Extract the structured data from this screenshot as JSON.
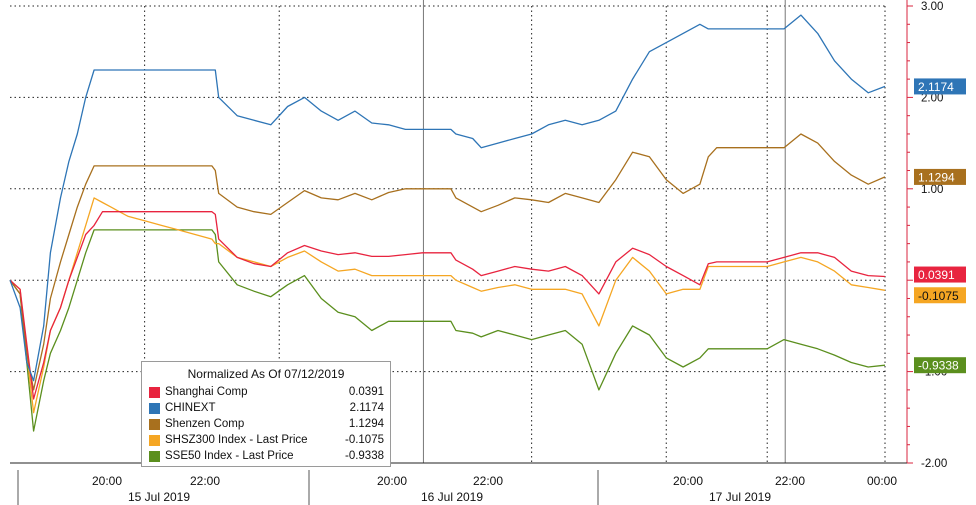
{
  "chart_data": {
    "type": "line",
    "title": "",
    "xlabel": "",
    "ylabel": "",
    "ylim": [
      -2.0,
      3.0
    ],
    "y_ticks": [
      {
        "value": 3.0,
        "label": "3.00"
      },
      {
        "value": 2.0,
        "label": "2.00"
      },
      {
        "value": 1.0,
        "label": "1.00"
      },
      {
        "value": 0.0,
        "label": ""
      },
      {
        "value": -1.0,
        "label": "-1.00"
      },
      {
        "value": -2.0,
        "label": "-2.00"
      }
    ],
    "x_time_labels": [
      "20:00",
      "22:00",
      "20:00",
      "22:00",
      "20:00",
      "22:00",
      "00:00"
    ],
    "x_day_labels": [
      "15 Jul 2019",
      "16 Jul 2019",
      "17 Jul 2019"
    ],
    "grid": true,
    "legend_position": "bottom-left",
    "legend_title": "Normalized As Of 07/12/2019",
    "series": [
      {
        "name": "Shanghai Comp",
        "color": "#e8243f",
        "last": "0.0391",
        "x": [
          0,
          0.6,
          1.0,
          1.4,
          2.0,
          2.4,
          3.0,
          3.5,
          4.0,
          4.5,
          5.0,
          5.5,
          6.0,
          6.5,
          7.0,
          8.0,
          9.0,
          10.0,
          11.0,
          12.0,
          12.2,
          12.4,
          13.5,
          14.5,
          15.5,
          16.5,
          17.5,
          18.5,
          19.5,
          20.5,
          21.5,
          22.5,
          23.5,
          24.5,
          25.5,
          26.0,
          26.2,
          26.5,
          27.5,
          28.0,
          29.0,
          30.0,
          31.0,
          32.0,
          33.0,
          34.0,
          35.0,
          36.0,
          37.0,
          38.0,
          39.0,
          40.0,
          41.0,
          41.5,
          42.0,
          42.5,
          43.0,
          43.5,
          44.0,
          45.0,
          46.0,
          47.0,
          48.0,
          49.0,
          50.0,
          51.0,
          52.0
        ],
        "y": [
          0,
          -0.1,
          -0.7,
          -1.3,
          -0.9,
          -0.55,
          -0.3,
          0,
          0.25,
          0.5,
          0.6,
          0.75,
          0.75,
          0.75,
          0.75,
          0.75,
          0.75,
          0.75,
          0.75,
          0.75,
          0.72,
          0.45,
          0.25,
          0.18,
          0.15,
          0.3,
          0.38,
          0.32,
          0.28,
          0.3,
          0.26,
          0.26,
          0.28,
          0.3,
          0.3,
          0.3,
          0.3,
          0.22,
          0.12,
          0.05,
          0.1,
          0.15,
          0.12,
          0.1,
          0.15,
          0.05,
          -0.15,
          0.2,
          0.35,
          0.28,
          0.15,
          0.05,
          -0.05,
          0.18,
          0.2,
          0.2,
          0.2,
          0.2,
          0.2,
          0.2,
          0.25,
          0.3,
          0.3,
          0.25,
          0.1,
          0.05,
          0.04
        ]
      },
      {
        "name": "CHINEXT",
        "color": "#2e75b6",
        "last": "2.1174",
        "x": [
          0,
          0.6,
          1.0,
          1.4,
          2.0,
          2.4,
          3.0,
          3.5,
          4.0,
          4.5,
          5.0,
          5.5,
          6.0,
          6.5,
          7.0,
          8.0,
          9.0,
          10.0,
          11.0,
          12.0,
          12.2,
          12.4,
          13.5,
          14.5,
          15.5,
          16.5,
          17.5,
          18.5,
          19.5,
          20.5,
          21.5,
          22.5,
          23.5,
          24.5,
          25.5,
          26.0,
          26.2,
          26.5,
          27.5,
          28.0,
          29.0,
          30.0,
          31.0,
          32.0,
          33.0,
          34.0,
          35.0,
          36.0,
          37.0,
          38.0,
          39.0,
          40.0,
          41.0,
          41.5,
          42.0,
          42.5,
          43.0,
          43.5,
          44.0,
          45.0,
          46.0,
          47.0,
          48.0,
          49.0,
          50.0,
          51.0,
          52.0
        ],
        "y": [
          0,
          -0.3,
          -0.9,
          -1.1,
          -0.5,
          0.3,
          0.9,
          1.3,
          1.6,
          2.0,
          2.3,
          2.3,
          2.3,
          2.3,
          2.3,
          2.3,
          2.3,
          2.3,
          2.3,
          2.3,
          2.3,
          2.0,
          1.8,
          1.75,
          1.7,
          1.9,
          2.0,
          1.85,
          1.75,
          1.85,
          1.72,
          1.7,
          1.65,
          1.65,
          1.65,
          1.65,
          1.65,
          1.6,
          1.55,
          1.45,
          1.5,
          1.55,
          1.6,
          1.7,
          1.75,
          1.7,
          1.75,
          1.85,
          2.2,
          2.5,
          2.6,
          2.7,
          2.8,
          2.75,
          2.75,
          2.75,
          2.75,
          2.75,
          2.75,
          2.75,
          2.75,
          2.9,
          2.7,
          2.4,
          2.2,
          2.05,
          2.12
        ]
      },
      {
        "name": "Shenzen Comp",
        "color": "#a8701e",
        "last": "1.1294",
        "x": [
          0,
          0.6,
          1.0,
          1.4,
          2.0,
          2.4,
          3.0,
          3.5,
          4.0,
          4.5,
          5.0,
          5.5,
          6.0,
          6.5,
          7.0,
          8.0,
          9.0,
          10.0,
          11.0,
          12.0,
          12.2,
          12.4,
          13.5,
          14.5,
          15.5,
          16.5,
          17.5,
          18.5,
          19.5,
          20.5,
          21.5,
          22.5,
          23.5,
          24.5,
          25.5,
          26.0,
          26.2,
          26.5,
          27.5,
          28.0,
          29.0,
          30.0,
          31.0,
          32.0,
          33.0,
          34.0,
          35.0,
          36.0,
          37.0,
          38.0,
          39.0,
          40.0,
          41.0,
          41.5,
          42.0,
          42.5,
          43.0,
          43.5,
          44.0,
          45.0,
          46.0,
          47.0,
          48.0,
          49.0,
          50.0,
          51.0,
          52.0
        ],
        "y": [
          0,
          -0.15,
          -0.8,
          -1.2,
          -0.7,
          -0.2,
          0.2,
          0.5,
          0.8,
          1.05,
          1.25,
          1.25,
          1.25,
          1.25,
          1.25,
          1.25,
          1.25,
          1.25,
          1.25,
          1.25,
          1.2,
          0.95,
          0.8,
          0.75,
          0.72,
          0.85,
          0.98,
          0.9,
          0.88,
          0.95,
          0.88,
          0.96,
          1.0,
          1.0,
          1.0,
          1.0,
          1.0,
          0.9,
          0.8,
          0.75,
          0.82,
          0.9,
          0.88,
          0.85,
          0.95,
          0.9,
          0.85,
          1.1,
          1.4,
          1.35,
          1.1,
          0.95,
          1.05,
          1.35,
          1.45,
          1.45,
          1.45,
          1.45,
          1.45,
          1.45,
          1.45,
          1.6,
          1.5,
          1.3,
          1.15,
          1.05,
          1.13
        ]
      },
      {
        "name": "SHSZ300 Index - Last Price",
        "color": "#f5a623",
        "last": "-0.1075",
        "x": [
          0,
          0.6,
          1.0,
          1.4,
          2.0,
          2.4,
          3.0,
          3.5,
          4.0,
          4.5,
          5.0,
          5.5,
          6.0,
          6.5,
          7.0,
          8.0,
          9.0,
          10.0,
          11.0,
          12.0,
          12.2,
          12.4,
          13.5,
          14.5,
          15.5,
          16.5,
          17.5,
          18.5,
          19.5,
          20.5,
          21.5,
          22.5,
          23.5,
          24.5,
          25.5,
          26.0,
          26.2,
          26.5,
          27.5,
          28.0,
          29.0,
          30.0,
          31.0,
          32.0,
          33.0,
          34.0,
          35.0,
          36.0,
          37.0,
          38.0,
          39.0,
          40.0,
          41.0,
          41.5,
          42.0,
          42.5,
          43.0,
          43.5,
          44.0,
          45.0,
          46.0,
          47.0,
          48.0,
          49.0,
          50.0,
          51.0,
          52.0
        ],
        "y": [
          0,
          -0.1,
          -0.8,
          -1.45,
          -0.95,
          -0.55,
          -0.3,
          0,
          0.3,
          0.6,
          0.9,
          0.85,
          0.8,
          0.75,
          0.7,
          0.65,
          0.6,
          0.55,
          0.5,
          0.45,
          0.4,
          0.4,
          0.25,
          0.2,
          0.15,
          0.25,
          0.32,
          0.2,
          0.1,
          0.12,
          0.05,
          0.05,
          0.05,
          0.05,
          0.05,
          0.05,
          0.05,
          0.0,
          -0.08,
          -0.12,
          -0.08,
          -0.05,
          -0.1,
          -0.1,
          -0.1,
          -0.15,
          -0.5,
          0.0,
          0.25,
          0.1,
          -0.15,
          -0.1,
          -0.1,
          0.15,
          0.15,
          0.15,
          0.15,
          0.15,
          0.15,
          0.15,
          0.2,
          0.25,
          0.2,
          0.1,
          -0.05,
          -0.08,
          -0.11
        ]
      },
      {
        "name": "SSE50 Index - Last Price",
        "color": "#5b8f1e",
        "last": "-0.9338",
        "x": [
          0,
          0.6,
          1.0,
          1.4,
          2.0,
          2.4,
          3.0,
          3.5,
          4.0,
          4.5,
          5.0,
          5.5,
          6.0,
          6.5,
          7.0,
          8.0,
          9.0,
          10.0,
          11.0,
          12.0,
          12.2,
          12.4,
          13.5,
          14.5,
          15.5,
          16.5,
          17.5,
          18.5,
          19.5,
          20.5,
          21.5,
          22.5,
          23.5,
          24.5,
          25.5,
          26.0,
          26.2,
          26.5,
          27.5,
          28.0,
          29.0,
          30.0,
          31.0,
          32.0,
          33.0,
          34.0,
          35.0,
          36.0,
          37.0,
          38.0,
          39.0,
          40.0,
          41.0,
          41.5,
          42.0,
          42.5,
          43.0,
          43.5,
          44.0,
          45.0,
          46.0,
          47.0,
          48.0,
          49.0,
          50.0,
          51.0,
          52.0
        ],
        "y": [
          0,
          -0.15,
          -0.9,
          -1.65,
          -1.1,
          -0.8,
          -0.55,
          -0.3,
          0.0,
          0.3,
          0.55,
          0.55,
          0.55,
          0.55,
          0.55,
          0.55,
          0.55,
          0.55,
          0.55,
          0.55,
          0.5,
          0.2,
          -0.05,
          -0.12,
          -0.18,
          -0.05,
          0.05,
          -0.2,
          -0.35,
          -0.4,
          -0.55,
          -0.45,
          -0.45,
          -0.45,
          -0.45,
          -0.45,
          -0.45,
          -0.55,
          -0.58,
          -0.62,
          -0.55,
          -0.6,
          -0.65,
          -0.6,
          -0.55,
          -0.7,
          -1.2,
          -0.8,
          -0.5,
          -0.6,
          -0.85,
          -0.95,
          -0.85,
          -0.75,
          -0.75,
          -0.75,
          -0.75,
          -0.75,
          -0.75,
          -0.75,
          -0.65,
          -0.7,
          -0.75,
          -0.82,
          -0.9,
          -0.95,
          -0.93
        ]
      }
    ]
  }
}
